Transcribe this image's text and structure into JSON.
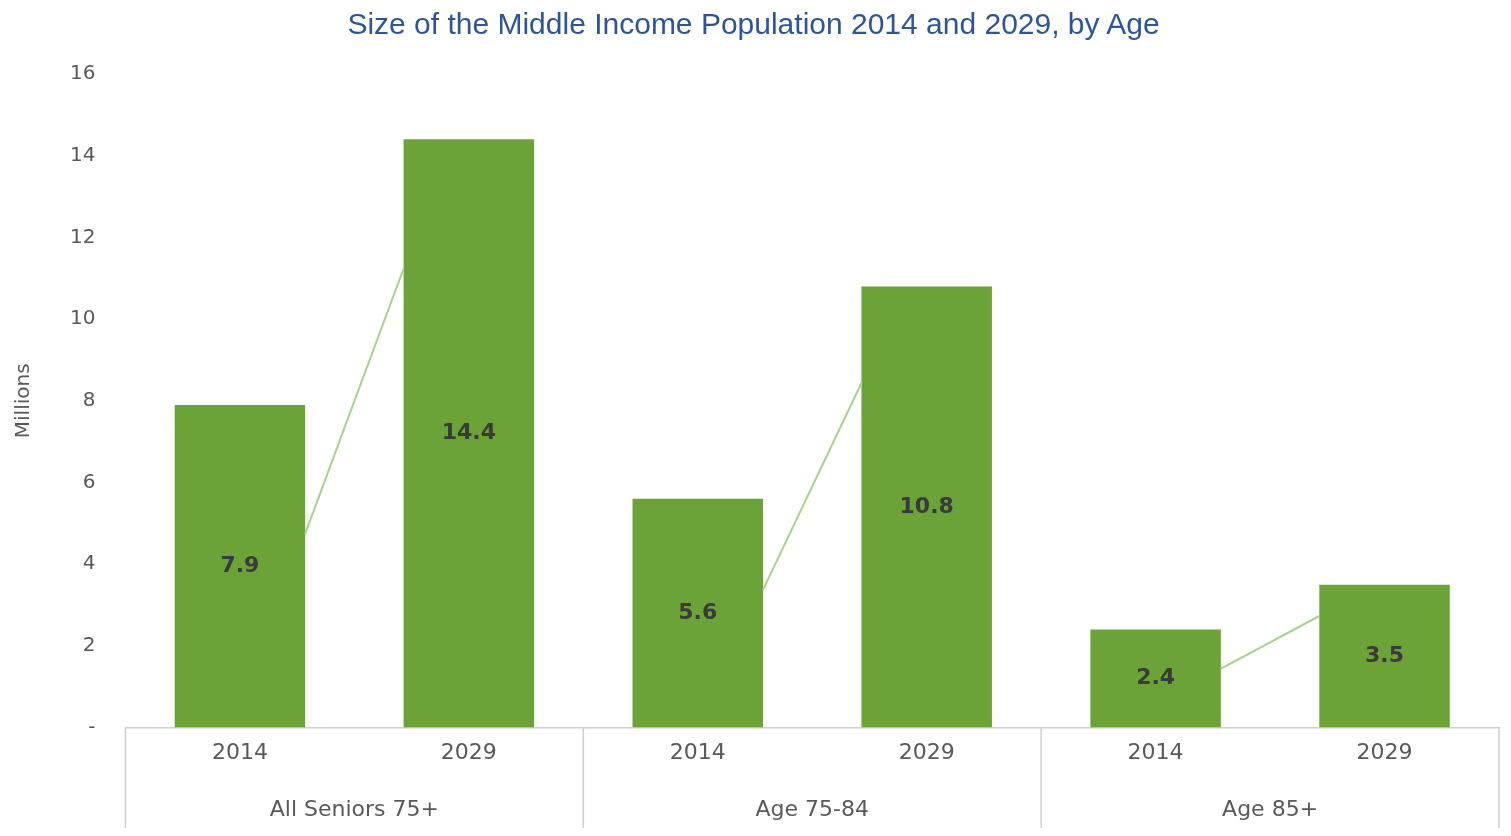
{
  "chart_data": {
    "type": "bar",
    "title": "Size of the Middle Income Population 2014 and 2029, by Age",
    "ylabel": "Millions",
    "categories": [
      "2014",
      "2029",
      "2014",
      "2029",
      "2014",
      "2029"
    ],
    "values": [
      7.9,
      14.4,
      5.6,
      10.8,
      2.4,
      3.5
    ],
    "color": "#6ca338",
    "ylim": [
      0,
      16
    ],
    "yticks": [
      {
        "value": 0,
        "label": "-"
      },
      2,
      4,
      6,
      8,
      10,
      12,
      14,
      16
    ],
    "grid": false,
    "data_labels": true,
    "annotations": [
      "All Seniors 75+",
      "Age 75-84",
      "Age 85+"
    ]
  }
}
